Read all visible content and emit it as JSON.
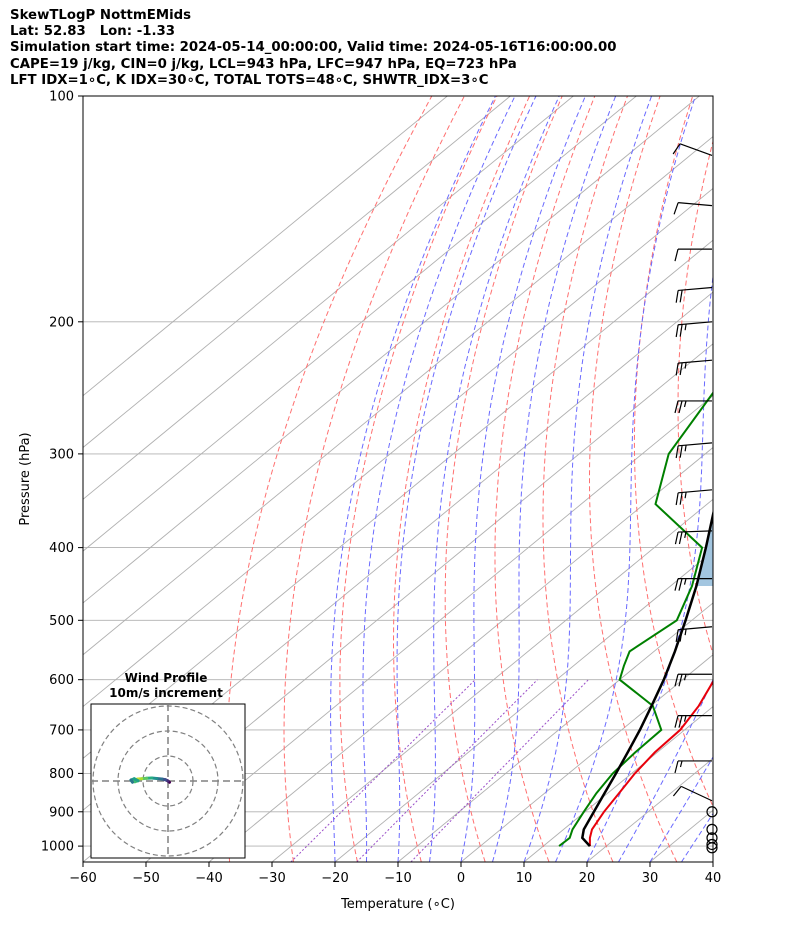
{
  "header": {
    "line1": "SkewTLogP NottmEMids",
    "line2": "Lat: 52.83   Lon: -1.33",
    "line3": "Simulation start time: 2024-05-14_00:00:00, Valid time: 2024-05-16T16:00:00.00",
    "line4": "CAPE=19 j/kg, CIN=0 j/kg, LCL=943 hPa, LFC=947 hPa, EQ=723 hPa",
    "line5": "LFT IDX=1∘C, K IDX=30∘C, TOTAL TOTS=48∘C, SHWTR_IDX=3∘C"
  },
  "chart_data": {
    "type": "skew-t log-p",
    "xlabel": "Temperature (∘C)",
    "ylabel": "Pressure (hPa)",
    "xlim": [
      -60,
      40
    ],
    "ylim": [
      1050,
      100
    ],
    "x_ticks": [
      -60,
      -50,
      -40,
      -30,
      -20,
      -10,
      0,
      10,
      20,
      30,
      40
    ],
    "y_ticks": [
      100,
      200,
      300,
      400,
      500,
      600,
      700,
      800,
      900,
      1000
    ],
    "grid": true,
    "colors": {
      "temperature": "#e8000b",
      "dewpoint": "#008000",
      "parcel": "#000000",
      "cape_fill": "#a3c6e0",
      "dry_adiabat": "#ff7070",
      "moist_adiabat": "#6a6aff",
      "mixing_ratio": "#9a4fc8",
      "isotherm": "#b0b0b0"
    },
    "temperature_profile": [
      {
        "p": 1000,
        "t": 17.4
      },
      {
        "p": 975,
        "t": 15.8
      },
      {
        "p": 950,
        "t": 14.5
      },
      {
        "p": 900,
        "t": 13.0
      },
      {
        "p": 850,
        "t": 11.8
      },
      {
        "p": 800,
        "t": 10.5
      },
      {
        "p": 750,
        "t": 9.6
      },
      {
        "p": 700,
        "t": 9.3
      },
      {
        "p": 650,
        "t": 7.6
      },
      {
        "p": 600,
        "t": 5.0
      },
      {
        "p": 550,
        "t": 1.0
      },
      {
        "p": 500,
        "t": -3.8
      },
      {
        "p": 450,
        "t": -9.6
      },
      {
        "p": 400,
        "t": -15.5
      },
      {
        "p": 350,
        "t": -22.4
      },
      {
        "p": 300,
        "t": -30.8
      },
      {
        "p": 250,
        "t": -40.4
      },
      {
        "p": 230,
        "t": -44.2
      },
      {
        "p": 220,
        "t": -43.6
      },
      {
        "p": 200,
        "t": -41.4
      },
      {
        "p": 175,
        "t": -39.7
      },
      {
        "p": 150,
        "t": -40.4
      },
      {
        "p": 125,
        "t": -42.6
      },
      {
        "p": 100,
        "t": -47.6
      }
    ],
    "dewpoint_profile": [
      {
        "p": 1000,
        "t": 12.5
      },
      {
        "p": 975,
        "t": 12.6
      },
      {
        "p": 950,
        "t": 11.4
      },
      {
        "p": 900,
        "t": 9.8
      },
      {
        "p": 850,
        "t": 8.2
      },
      {
        "p": 800,
        "t": 7.0
      },
      {
        "p": 750,
        "t": 6.5
      },
      {
        "p": 700,
        "t": 6.3
      },
      {
        "p": 650,
        "t": 0.3
      },
      {
        "p": 600,
        "t": -10.0
      },
      {
        "p": 575,
        "t": -12.0
      },
      {
        "p": 550,
        "t": -13.9
      },
      {
        "p": 500,
        "t": -12.4
      },
      {
        "p": 450,
        "t": -16.6
      },
      {
        "p": 400,
        "t": -22.4
      },
      {
        "p": 350,
        "t": -38.2
      },
      {
        "p": 300,
        "t": -45.8
      },
      {
        "p": 250,
        "t": -50.4
      },
      {
        "p": 200,
        "t": -56.1
      },
      {
        "p": 175,
        "t": -62.2
      },
      {
        "p": 150,
        "t": -70.6
      },
      {
        "p": 100,
        "t": -74.0
      }
    ],
    "parcel_profile": [
      {
        "p": 1000,
        "t": 17.4
      },
      {
        "p": 975,
        "t": 14.6
      },
      {
        "p": 950,
        "t": 13.2
      },
      {
        "p": 900,
        "t": 11.4
      },
      {
        "p": 850,
        "t": 9.5
      },
      {
        "p": 800,
        "t": 7.5
      },
      {
        "p": 750,
        "t": 5.3
      },
      {
        "p": 700,
        "t": 2.9
      },
      {
        "p": 650,
        "t": 0.1
      },
      {
        "p": 600,
        "t": -3.0
      },
      {
        "p": 550,
        "t": -6.7
      },
      {
        "p": 500,
        "t": -11.0
      },
      {
        "p": 450,
        "t": -15.9
      },
      {
        "p": 400,
        "t": -21.8
      },
      {
        "p": 350,
        "t": -28.7
      },
      {
        "p": 300,
        "t": -37.0
      },
      {
        "p": 250,
        "t": -46.4
      },
      {
        "p": 200,
        "t": -57.6
      },
      {
        "p": 150,
        "t": -70.9
      },
      {
        "p": 100,
        "t": -88.4
      }
    ],
    "wind_barbs": [
      {
        "p": 120,
        "speed": 12,
        "dir": 290
      },
      {
        "p": 140,
        "speed": 10,
        "dir": 275
      },
      {
        "p": 160,
        "speed": 10,
        "dir": 270
      },
      {
        "p": 180,
        "speed": 20,
        "dir": 265
      },
      {
        "p": 200,
        "speed": 25,
        "dir": 265
      },
      {
        "p": 225,
        "speed": 25,
        "dir": 265
      },
      {
        "p": 255,
        "speed": 25,
        "dir": 270
      },
      {
        "p": 290,
        "speed": 25,
        "dir": 265
      },
      {
        "p": 335,
        "speed": 25,
        "dir": 265
      },
      {
        "p": 380,
        "speed": 25,
        "dir": 268
      },
      {
        "p": 440,
        "speed": 25,
        "dir": 270
      },
      {
        "p": 510,
        "speed": 25,
        "dir": 265
      },
      {
        "p": 590,
        "speed": 25,
        "dir": 270
      },
      {
        "p": 670,
        "speed": 25,
        "dir": 270
      },
      {
        "p": 770,
        "speed": 15,
        "dir": 270
      },
      {
        "p": 870,
        "speed": 10,
        "dir": 295
      }
    ],
    "calm_levels": [
      900,
      950,
      975,
      995,
      1005
    ],
    "hodograph": {
      "title": "Wind Profile",
      "subtitle": "10m/s increment",
      "ring_step_ms": 10,
      "rings": 3,
      "trace": [
        {
          "u": 0.6,
          "v": -0.5
        },
        {
          "u": 0.0,
          "v": 0.0
        },
        {
          "u": -1.0,
          "v": 0.5
        },
        {
          "u": -2.5,
          "v": 0.8
        },
        {
          "u": -4.5,
          "v": 1.0
        },
        {
          "u": -6.5,
          "v": 1.2
        },
        {
          "u": -8.5,
          "v": 1.1
        },
        {
          "u": -10.5,
          "v": 0.9
        },
        {
          "u": -12.0,
          "v": 0.8
        },
        {
          "u": -13.5,
          "v": 0.4
        },
        {
          "u": -14.0,
          "v": -0.2
        },
        {
          "u": -13.2,
          "v": -0.3
        },
        {
          "u": -12.0,
          "v": 0.1
        },
        {
          "u": -13.5,
          "v": 0.9
        },
        {
          "u": -14.8,
          "v": 0.4
        },
        {
          "u": -14.2,
          "v": -0.5
        }
      ]
    }
  }
}
